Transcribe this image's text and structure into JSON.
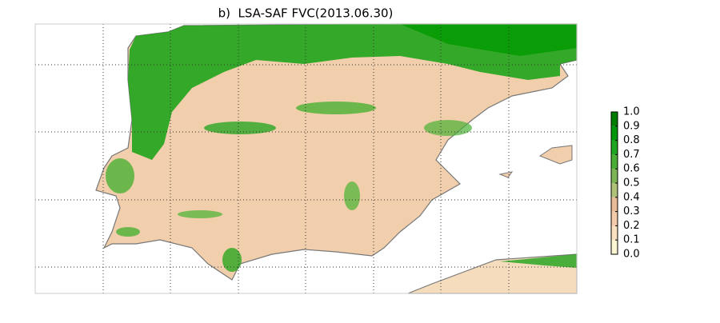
{
  "title": "b)  LSA-SAF FVC(2013.06.30)",
  "colorbar": {
    "lim": [
      0,
      1
    ],
    "ticks": [
      {
        "value": 0,
        "label": "0.0"
      },
      0.1,
      0.2,
      0.3,
      0.4,
      0.5,
      0.6,
      0.7,
      0.8,
      0.9,
      {
        "value": 1,
        "label": "1.0"
      }
    ],
    "colors": [
      "#fdf6d3",
      "#f8e0c0",
      "#f3cba8",
      "#e9bb98",
      "#b0c27a",
      "#7db455",
      "#4aae35",
      "#1ea41e",
      "#00960a",
      "#007d00"
    ]
  }
}
